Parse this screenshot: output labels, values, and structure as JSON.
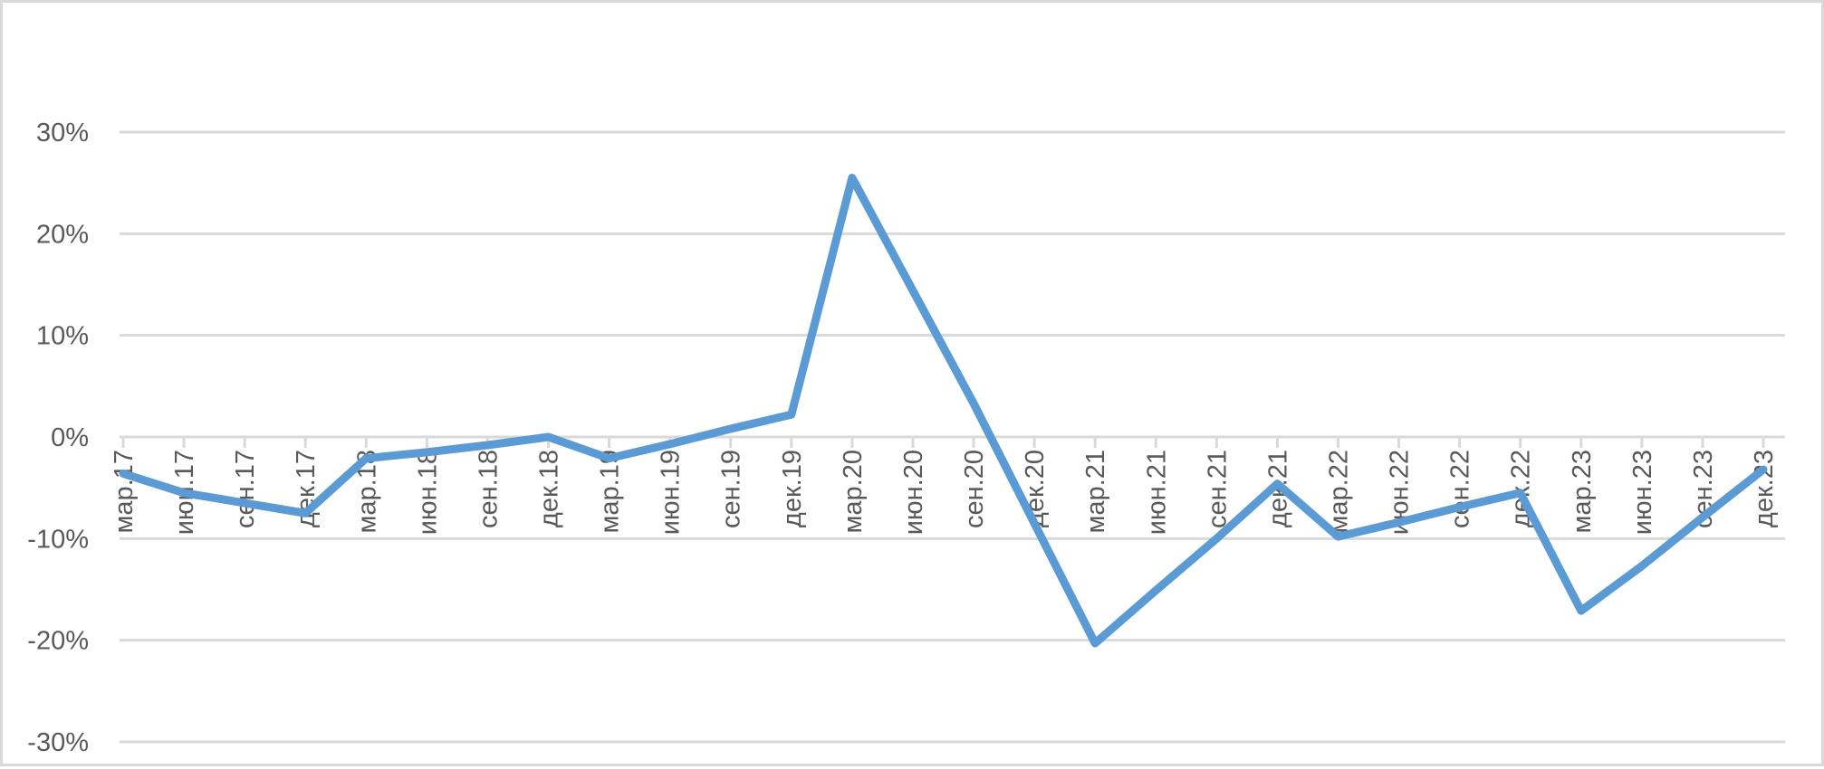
{
  "chart_data": {
    "type": "line",
    "title": "",
    "xlabel": "",
    "ylabel": "",
    "ylim": [
      -30,
      30
    ],
    "yticks": [
      30,
      20,
      10,
      0,
      -10,
      -20,
      -30
    ],
    "ytick_labels": [
      "30%",
      "20%",
      "10%",
      "0%",
      "-10%",
      "-20%",
      "-30%"
    ],
    "grid": true,
    "legend": "none",
    "line_color": "#5b9bd5",
    "categories": [
      "мар.17",
      "июн.17",
      "сен.17",
      "дек.17",
      "мар.18",
      "июн.18",
      "сен.18",
      "дек.18",
      "мар.19",
      "июн.19",
      "сен.19",
      "дек.19",
      "мар.20",
      "июн.20",
      "сен.20",
      "дек.20",
      "мар.21",
      "июн.21",
      "сен.21",
      "дек.21",
      "мар.22",
      "июн.22",
      "сен.22",
      "дек.22",
      "мар.23",
      "июн.23",
      "сен.23",
      "дек.23"
    ],
    "series": [
      {
        "values": [
          -3.6,
          -5.5,
          -6.5,
          -7.5,
          -2.1,
          -1.5,
          -0.8,
          0.0,
          -2.1,
          -0.7,
          0.8,
          2.2,
          25.5,
          14.4,
          3.3,
          -8.5,
          -20.3,
          -15.1,
          -10.0,
          -4.6,
          -9.8,
          -8.4,
          -6.9,
          -5.5,
          -17.1,
          -12.7,
          -7.9,
          -3.2
        ]
      }
    ]
  }
}
